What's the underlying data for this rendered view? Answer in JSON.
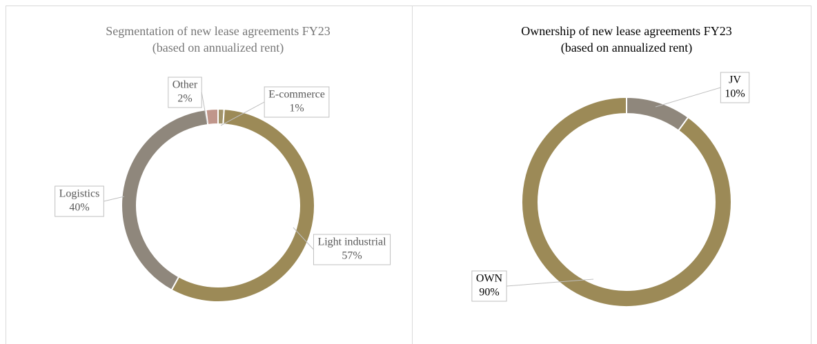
{
  "chart_data": [
    {
      "type": "pie",
      "title": "Segmentation of new lease agreements FY23",
      "subtitle": "(based on annualized rent)",
      "categories": [
        "E-commerce",
        "Light industrial",
        "Logistics",
        "Other"
      ],
      "values": [
        1,
        57,
        40,
        2
      ],
      "value_labels": [
        "1%",
        "57%",
        "40%",
        "2%"
      ],
      "colors": [
        "#a2946a",
        "#9c8a57",
        "#8f877c",
        "#c0968b"
      ],
      "donut": true
    },
    {
      "type": "pie",
      "title": "Ownership of new lease agreements FY23",
      "subtitle": "(based on annualized rent)",
      "categories": [
        "JV",
        "OWN"
      ],
      "values": [
        10,
        90
      ],
      "value_labels": [
        "10%",
        "90%"
      ],
      "colors": [
        "#8f877c",
        "#9c8a57"
      ],
      "donut": true
    }
  ]
}
